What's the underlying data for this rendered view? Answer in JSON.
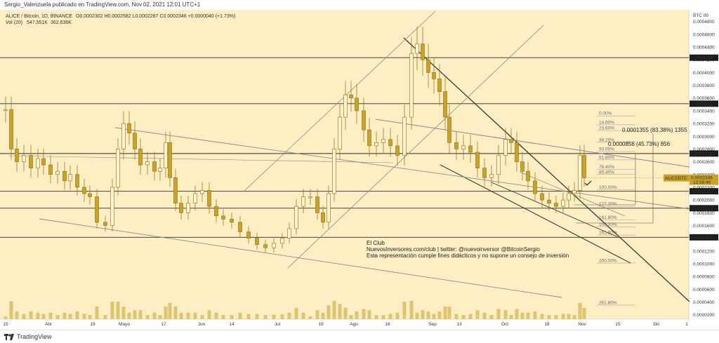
{
  "header": {
    "publisher": "Sergio_Valenzuela publicado en TradingView.com, Nov 02, 2021 12:01 UTC+1",
    "symbol_line": "ALICE / Bitcoin, 1D, BINANCE",
    "ohlc": "O0.0002302 H0.0002582 L0.0002287 C0.0002346 +0.0000040 (+1.73%)",
    "volume_label": "Vol (20)",
    "volume_value": "547.551K",
    "volume_ma": "362.636K"
  },
  "footer": {
    "brand": "TradingView"
  },
  "colors": {
    "background": "#fdeec4",
    "candle": "#c9a227",
    "candle_wick": "#8c6d10",
    "line_dark": "#3a3a3a",
    "line_grey": "#8a8a8a",
    "price_badge": "#1c1c1c",
    "current_badge": "#c9a227"
  },
  "chart_data": {
    "type": "candlestick",
    "title": "ALICE / Bitcoin, 1D, BINANCE",
    "axis_unit": "BTC 00",
    "y_ticks": [
      "0.0004800",
      "0.0004600",
      "0.0004400",
      "0.0004200",
      "0.0004000",
      "0.0003800",
      "0.0003600",
      "0.0003400",
      "0.0003200",
      "0.0003000",
      "0.0002800",
      "0.0002600",
      "0.0002400",
      "0.0002200",
      "0.0002000",
      "0.0001800",
      "0.0001600",
      "0.0001400",
      "0.0001200",
      "0.0001000",
      "0.0000800",
      "0.0000600",
      "0.0000400",
      "0.0000200"
    ],
    "ylim": [
      1.3e-05,
      0.0004984
    ],
    "x_ticks": [
      "15",
      "Abr",
      "19",
      "Mayo",
      "17",
      "Jun",
      "14",
      "Jul",
      "19",
      "Ago",
      "16",
      "Sep",
      "13",
      "Oct",
      "18",
      "Nov",
      "15",
      "Dic",
      "1"
    ],
    "horizontal_levels": [
      {
        "value": "0.0004233",
        "y": 0.0004233
      },
      {
        "value": "0.0003511",
        "y": 0.0003511
      },
      {
        "value": "0.0002729",
        "y": 0.0002729
      },
      {
        "value": "0.0002137",
        "y": 0.0002137
      },
      {
        "value": "0.0001871",
        "y": 0.0001871
      },
      {
        "value": "0.0001414",
        "y": 0.0001414
      }
    ],
    "current_price": {
      "symbol": "ALICEBTC",
      "value": "0.0002346",
      "countdown": "12:58:49"
    },
    "fib_levels": [
      {
        "label": "0.00%",
        "y": 0.000332
      },
      {
        "label": "14.60%",
        "y": 0.000318
      },
      {
        "label": "23.60%",
        "y": 0.000309
      },
      {
        "label": "38.20%",
        "y": 0.0002905
      },
      {
        "label": "50.00%",
        "y": 0.000276
      },
      {
        "label": "61.80%",
        "y": 0.000263
      },
      {
        "label": "76.40%",
        "y": 0.000248
      },
      {
        "label": "85.40%",
        "y": 0.00024
      },
      {
        "label": "100.00%",
        "y": 0.000216
      },
      {
        "label": "127.20%",
        "y": 0.00019
      },
      {
        "label": "161.80%",
        "y": 0.000169
      },
      {
        "label": "100.00%",
        "y": 0.000158
      },
      {
        "label": "161.80%",
        "y": 0.000145
      },
      {
        "label": "200.00%",
        "y": 0.000101
      },
      {
        "label": "261.80%",
        "y": 3.5e-05
      }
    ],
    "measurements": [
      {
        "text": "0.0001355 (83.38%) 1355"
      },
      {
        "text": "0.0000856 (45.73%) 856"
      }
    ],
    "annotation": {
      "title": "El Club",
      "line1": "NuevosInversores.com/club | twitter: @nuevoinversor @BitcoinSergio",
      "line2": "Esta representación cumple fines didácticos y no supone un consejo de inversión"
    }
  }
}
